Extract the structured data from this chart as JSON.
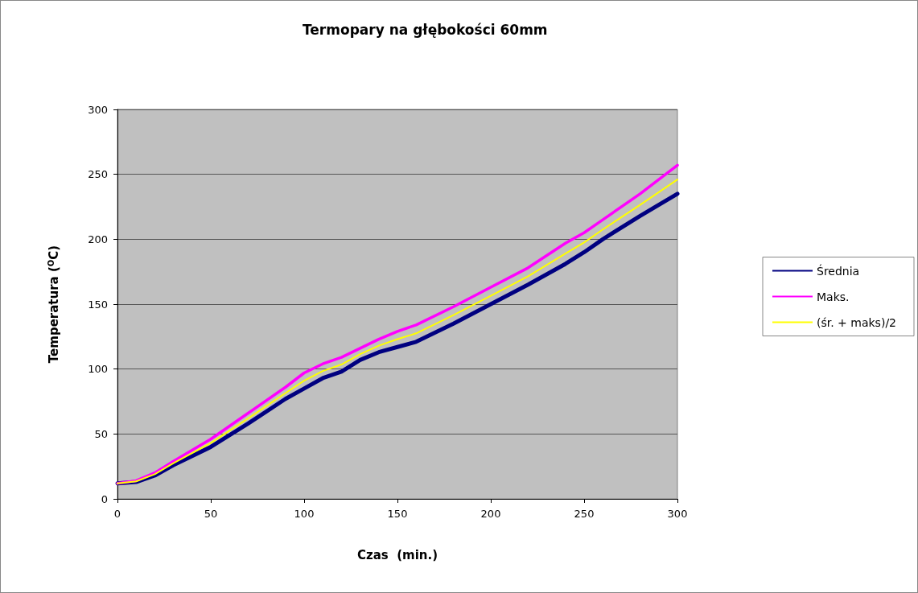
{
  "chart_data": {
    "type": "line",
    "title": "Termopary na głębokości 60mm",
    "xlabel": "Czas  (min.)",
    "ylabel": "Temperatura ($^{O}$C)",
    "x": [
      0,
      10,
      20,
      30,
      50,
      70,
      90,
      100,
      110,
      120,
      130,
      140,
      150,
      160,
      180,
      200,
      220,
      240,
      250,
      260,
      280,
      300
    ],
    "series": [
      {
        "name": "Średnia",
        "color": "#000080",
        "values": [
          12,
          13,
          18,
          26,
          40,
          58,
          77,
          85,
          93,
          98,
          107,
          113,
          117,
          121,
          135,
          150,
          165,
          181,
          190,
          200,
          218,
          235
        ]
      },
      {
        "name": "Maks.",
        "color": "#ff00ff",
        "values": [
          12,
          14,
          20,
          29,
          46,
          66,
          86,
          97,
          104,
          109,
          116,
          123,
          129,
          134,
          148,
          163,
          178,
          197,
          205,
          215,
          235,
          257
        ]
      },
      {
        "name": "(śr. + maks)/2",
        "color": "#ffff00",
        "values": [
          12,
          13.5,
          19,
          27.5,
          43,
          62,
          81.5,
          91,
          98.5,
          103.5,
          111.5,
          118,
          123,
          127.5,
          141.5,
          156.5,
          171.5,
          189,
          197.5,
          207.5,
          226.5,
          246
        ]
      }
    ],
    "xlim": [
      0,
      300
    ],
    "xticks": [
      0,
      50,
      100,
      150,
      200,
      250,
      300
    ],
    "ylim": [
      0,
      300
    ],
    "yticks": [
      0,
      50,
      100,
      150,
      200,
      250,
      300
    ],
    "grid": "y",
    "legend": "right",
    "marker": "none",
    "line_style": "solid"
  }
}
